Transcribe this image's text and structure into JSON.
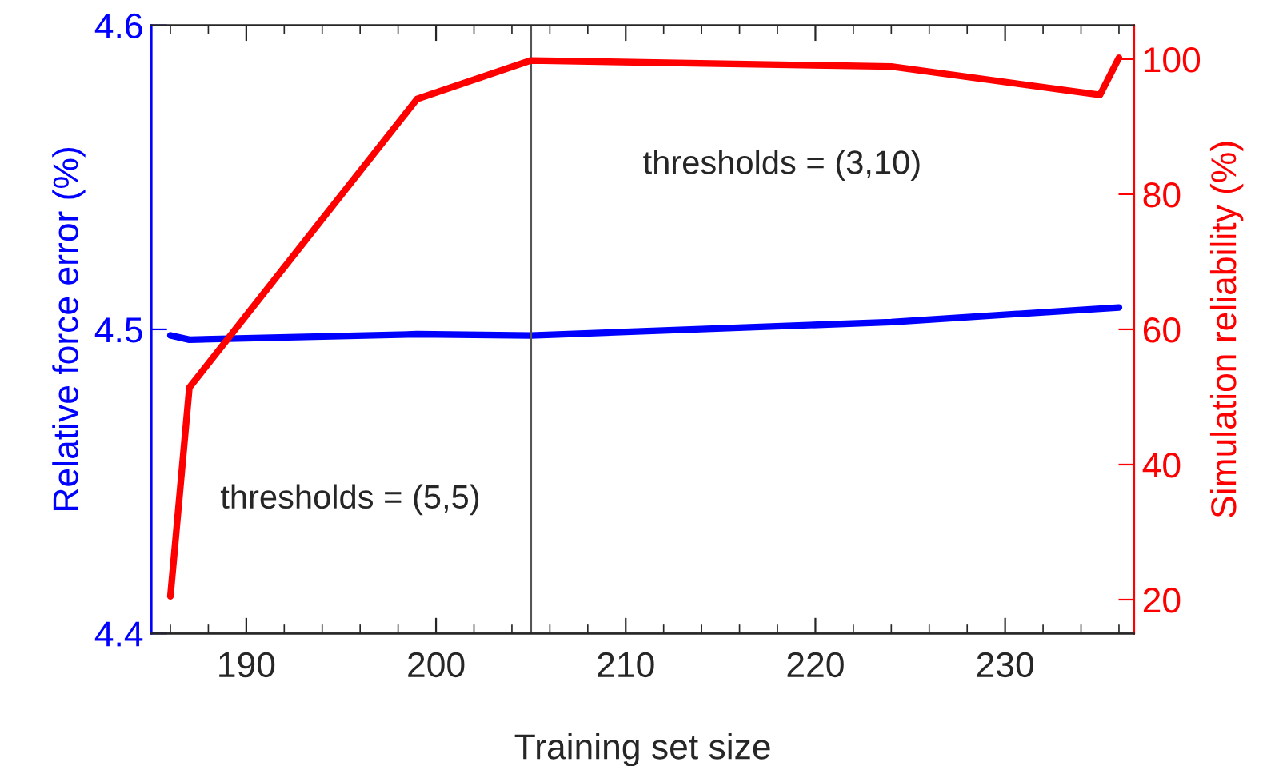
{
  "chart_data": {
    "type": "line",
    "xlabel": "Training set size",
    "ylabel": "Relative force error (%)",
    "y2label": "Simulation reliability (%)",
    "xlim": [
      185,
      236.8
    ],
    "xticks": [
      {
        "value": 186,
        "label": null
      },
      {
        "value": 188,
        "label": null
      },
      190,
      {
        "value": 192,
        "label": null
      },
      {
        "value": 194,
        "label": null
      },
      {
        "value": 196,
        "label": null
      },
      {
        "value": 198,
        "label": null
      },
      200,
      {
        "value": 202,
        "label": null
      },
      {
        "value": 204,
        "label": null
      },
      {
        "value": 206,
        "label": null
      },
      {
        "value": 208,
        "label": null
      },
      210,
      {
        "value": 212,
        "label": null
      },
      {
        "value": 214,
        "label": null
      },
      {
        "value": 216,
        "label": null
      },
      {
        "value": 218,
        "label": null
      },
      220,
      {
        "value": 222,
        "label": null
      },
      {
        "value": 224,
        "label": null
      },
      {
        "value": 226,
        "label": null
      },
      {
        "value": 228,
        "label": null
      },
      230,
      {
        "value": 232,
        "label": null
      },
      {
        "value": 234,
        "label": null
      },
      {
        "value": 236,
        "label": null
      }
    ],
    "ylim": [
      4.4,
      4.6
    ],
    "yticks": [
      4.4,
      4.5,
      4.6
    ],
    "y2lim": [
      15,
      105
    ],
    "y2ticks": [
      20,
      40,
      60,
      80,
      100
    ],
    "series": [
      {
        "color": "#0000ff",
        "x": [
          186,
          187,
          199,
          205,
          224,
          236
        ],
        "values": [
          4.498,
          4.4966,
          4.4984,
          4.498,
          4.5024,
          4.5072
        ]
      },
      {
        "color": "#ff0000",
        "axis": "y2",
        "x": [
          186,
          187,
          199,
          205,
          224,
          235,
          236
        ],
        "values": [
          20.5,
          51.4,
          94.1,
          99.8,
          98.9,
          94.7,
          100.2
        ]
      }
    ],
    "ref_lines": [
      {
        "axis": "x",
        "value": 205,
        "color": "#555555",
        "line_style": "solid"
      }
    ],
    "annotations": [
      "thresholds = (5,5)",
      "thresholds = (3,10)"
    ],
    "grid": false,
    "legend": false,
    "marker": "none",
    "line_style": "solid"
  }
}
